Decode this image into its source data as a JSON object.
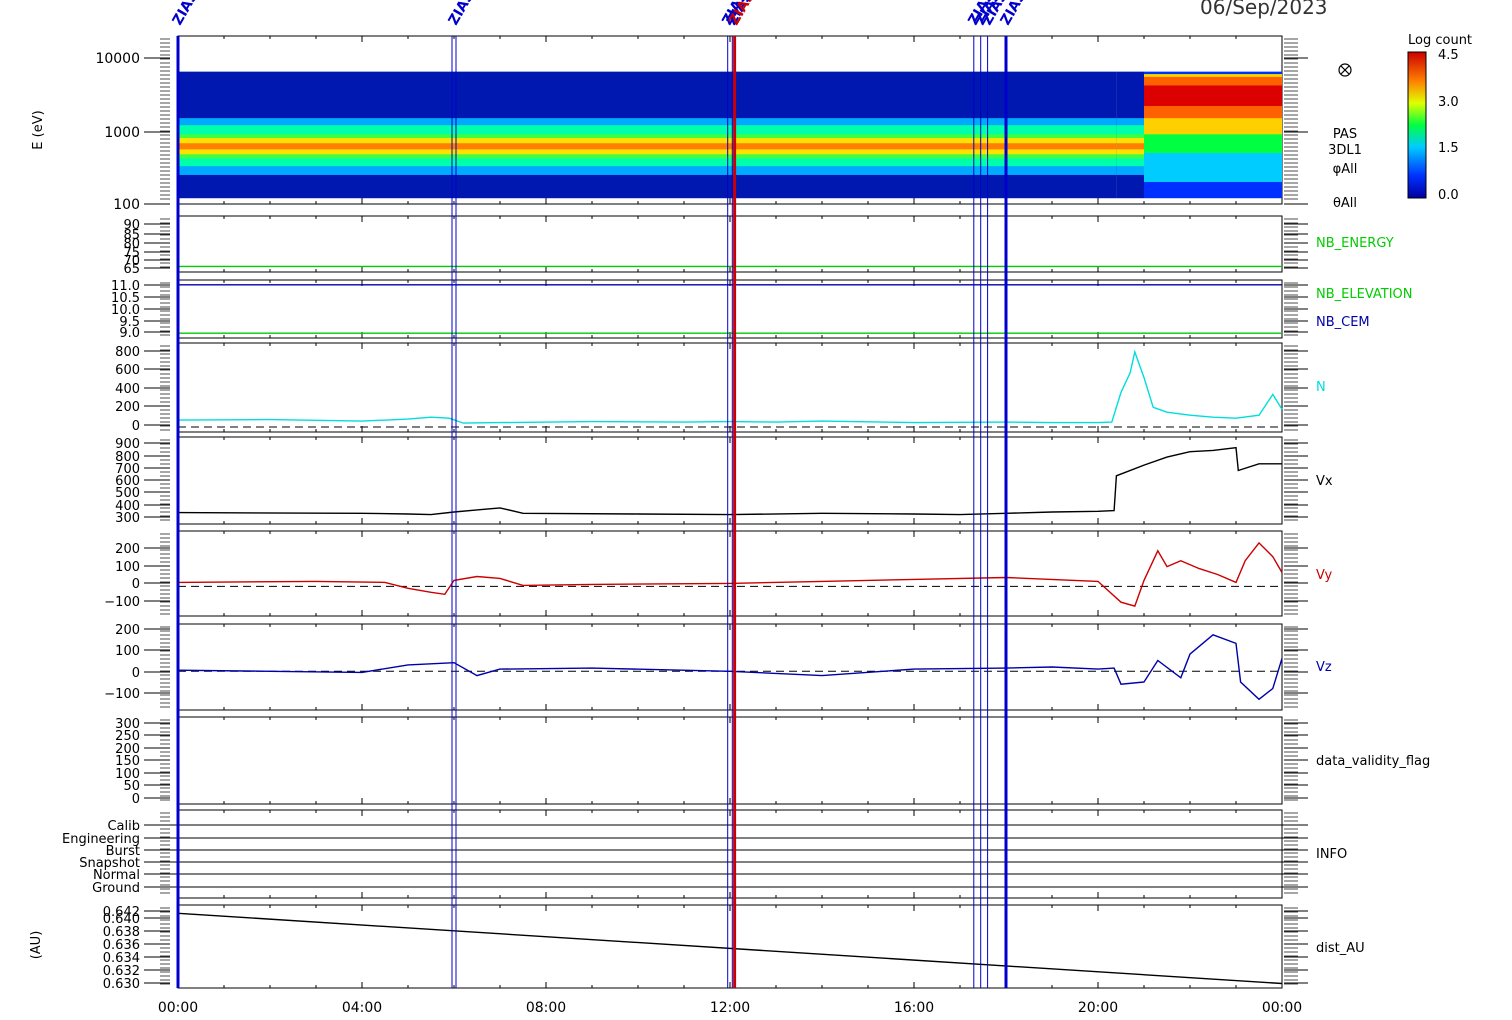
{
  "date_title": "06/Sep/2023",
  "colorbar": {
    "title": "Log count",
    "tick_labels": [
      "4.5",
      "3.0",
      "1.5",
      "0.0"
    ]
  },
  "time_axis": {
    "tick_labels": [
      "00:00",
      "04:00",
      "08:00",
      "12:00",
      "16:00",
      "20:00",
      "00:00"
    ]
  },
  "event_markers": [
    {
      "hour": 0.0,
      "label": "ZIAS",
      "color": "#0000cc",
      "style": "thick"
    },
    {
      "hour": 6.0,
      "label": "ZIAS",
      "color": "#0000cc",
      "style": "double"
    },
    {
      "hour": 11.95,
      "label": "ZIAS",
      "color": "#0000cc",
      "style": "thin"
    },
    {
      "hour": 12.05,
      "label": "ZIAS",
      "color": "#0000cc",
      "style": "thin"
    },
    {
      "hour": 12.1,
      "label": "ZIAS",
      "color": "#cc0000",
      "style": "thick"
    },
    {
      "hour": 17.3,
      "label": "ZIAS",
      "color": "#0000cc",
      "style": "thin"
    },
    {
      "hour": 17.45,
      "label": "ZIAS",
      "color": "#0000cc",
      "style": "thin"
    },
    {
      "hour": 17.6,
      "label": "ZIAS",
      "color": "#0000cc",
      "style": "thin"
    },
    {
      "hour": 18.0,
      "label": "ZIAS",
      "color": "#0000cc",
      "style": "thick"
    }
  ],
  "chart_data": [
    {
      "type": "heatmap",
      "panel": "spectrogram",
      "ylabel": "E (eV)",
      "y_scale": "log",
      "ylim": [
        100,
        20000
      ],
      "y_tick_labels": [
        "10000",
        "1000",
        "100"
      ],
      "right_labels": [
        "PAS",
        "3DL1",
        "φAll",
        "θAll"
      ],
      "right_icon": "cross-circle-icon",
      "zlim": [
        0.0,
        4.5
      ],
      "x_hours": [
        0,
        4,
        5,
        6,
        7,
        8,
        12,
        16,
        18,
        20,
        20.4,
        21,
        22,
        23,
        24
      ],
      "peak_energy_eV": [
        600,
        600,
        620,
        650,
        640,
        620,
        620,
        620,
        620,
        620,
        620,
        3000,
        3000,
        3000,
        3000
      ]
    },
    {
      "type": "line",
      "panel": "nb-energy",
      "y_tick_labels": [
        "90",
        "85",
        "80",
        "75",
        "70",
        "65"
      ],
      "ylim": [
        62,
        92
      ],
      "series": [
        {
          "name": "NB_ENERGY",
          "color": "#00cc00",
          "x": [
            0,
            24
          ],
          "y": [
            65,
            65
          ]
        }
      ]
    },
    {
      "type": "line",
      "panel": "nb-elevation-cem",
      "y_tick_labels": [
        "11.0",
        "10.5",
        "10.0",
        "9.5",
        "9.0"
      ],
      "ylim": [
        8.8,
        11.2
      ],
      "series": [
        {
          "name": "NB_ELEVATION",
          "color": "#00cc00",
          "x": [
            0,
            24
          ],
          "y": [
            9.0,
            9.0
          ]
        },
        {
          "name": "NB_CEM",
          "color": "#0000aa",
          "x": [
            0,
            24
          ],
          "y": [
            11.0,
            11.0
          ]
        }
      ]
    },
    {
      "type": "line",
      "panel": "density",
      "y_tick_labels": [
        "800",
        "600",
        "400",
        "200",
        "0"
      ],
      "ylim": [
        -50,
        850
      ],
      "zero_line": true,
      "series": [
        {
          "name": "N",
          "color": "#00dddd",
          "x": [
            0,
            2,
            4,
            5,
            5.5,
            5.9,
            6.2,
            7,
            9,
            11,
            12,
            13,
            14,
            16,
            18,
            19,
            20,
            20.3,
            20.5,
            20.7,
            20.8,
            21.0,
            21.2,
            21.5,
            22,
            22.5,
            23,
            23.5,
            23.8,
            24
          ],
          "y": [
            70,
            75,
            60,
            80,
            100,
            90,
            40,
            45,
            55,
            50,
            55,
            50,
            60,
            45,
            50,
            45,
            45,
            50,
            350,
            550,
            760,
            500,
            200,
            150,
            120,
            100,
            90,
            120,
            330,
            180
          ]
        }
      ]
    },
    {
      "type": "line",
      "panel": "vx",
      "y_tick_labels": [
        "900",
        "800",
        "700",
        "600",
        "500",
        "400",
        "300"
      ],
      "ylim": [
        250,
        900
      ],
      "series": [
        {
          "name": "Vx",
          "color": "#000000",
          "x": [
            0,
            4,
            5,
            5.5,
            6,
            6.5,
            7,
            7.5,
            10,
            12,
            14,
            16,
            17,
            18,
            19,
            20,
            20.35,
            20.4,
            21,
            21.5,
            22,
            22.5,
            23,
            23.05,
            23.5,
            24
          ],
          "y": [
            335,
            330,
            325,
            320,
            340,
            355,
            370,
            330,
            325,
            320,
            330,
            325,
            320,
            330,
            340,
            345,
            350,
            610,
            690,
            750,
            790,
            800,
            820,
            650,
            700,
            700
          ]
        }
      ]
    },
    {
      "type": "line",
      "panel": "vy",
      "y_tick_labels": [
        "200",
        "100",
        "0",
        "−100"
      ],
      "ylim": [
        -150,
        280
      ],
      "zero_line": true,
      "series": [
        {
          "name": "Vy",
          "color": "#cc0000",
          "x": [
            0,
            3,
            4.5,
            5,
            5.5,
            5.8,
            6,
            6.5,
            7,
            7.5,
            9,
            12,
            14,
            16,
            18,
            20,
            20.5,
            20.8,
            21.0,
            21.3,
            21.5,
            21.8,
            22.2,
            22.6,
            23,
            23.2,
            23.5,
            23.8,
            24
          ],
          "y": [
            20,
            25,
            20,
            -10,
            -30,
            -40,
            30,
            50,
            40,
            5,
            10,
            15,
            25,
            35,
            45,
            25,
            -80,
            -100,
            30,
            180,
            100,
            130,
            90,
            60,
            20,
            130,
            220,
            150,
            70
          ]
        }
      ]
    },
    {
      "type": "line",
      "panel": "vz",
      "y_tick_labels": [
        "200",
        "100",
        "0",
        "−100"
      ],
      "ylim": [
        -180,
        220
      ],
      "zero_line": true,
      "series": [
        {
          "name": "Vz",
          "color": "#0000aa",
          "x": [
            0,
            2,
            4,
            5,
            6,
            6.5,
            7,
            9,
            12,
            14,
            16,
            18,
            19,
            20,
            20.35,
            20.5,
            21,
            21.3,
            21.8,
            22,
            22.5,
            23,
            23.1,
            23.5,
            23.8,
            24
          ],
          "y": [
            5,
            0,
            -5,
            30,
            40,
            -20,
            10,
            15,
            0,
            -20,
            10,
            15,
            20,
            10,
            15,
            -60,
            -50,
            50,
            -30,
            80,
            170,
            130,
            -50,
            -130,
            -80,
            60
          ]
        }
      ]
    },
    {
      "type": "line",
      "panel": "data-validity",
      "y_tick_labels": [
        "300",
        "250",
        "200",
        "150",
        "100",
        "50",
        "0"
      ],
      "ylim": [
        -10,
        310
      ],
      "series": [
        {
          "name": "data_validity_flag",
          "color": "#000000",
          "x": [],
          "y": []
        }
      ]
    },
    {
      "type": "line",
      "panel": "info",
      "y_tick_labels": [
        "Calib",
        "Engineering",
        "Burst",
        "Snapshot",
        "Normal",
        "Ground"
      ],
      "series": [
        {
          "name": "INFO",
          "color": "#000000",
          "x": [],
          "y": []
        }
      ]
    },
    {
      "type": "line",
      "panel": "distance",
      "ylabel": "(AU)",
      "y_tick_labels": [
        "0.642",
        "0.640",
        "0.638",
        "0.636",
        "0.634",
        "0.632",
        "0.630"
      ],
      "ylim": [
        0.6293,
        0.6423
      ],
      "series": [
        {
          "name": "dist_AU",
          "color": "#000000",
          "x": [
            0,
            24
          ],
          "y": [
            0.641,
            0.63
          ]
        }
      ]
    }
  ]
}
